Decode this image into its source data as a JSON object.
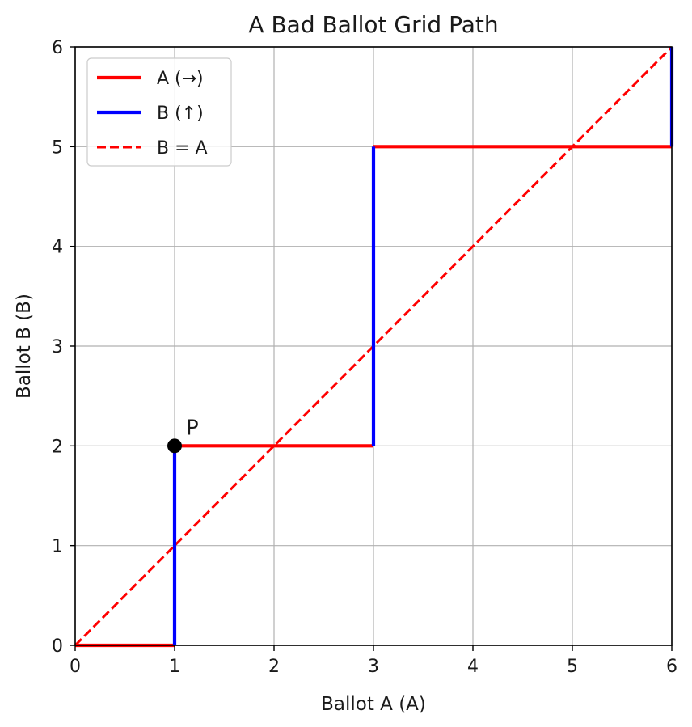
{
  "chart_data": {
    "type": "line",
    "title": "A Bad Ballot Grid Path",
    "xlabel": "Ballot A (A)",
    "ylabel": "Ballot B (B)",
    "xlim": [
      0,
      6
    ],
    "ylim": [
      0,
      6
    ],
    "xticks": [
      "0",
      "1",
      "2",
      "3",
      "4",
      "5",
      "6"
    ],
    "yticks": [
      "0",
      "1",
      "2",
      "3",
      "4",
      "5",
      "6"
    ],
    "grid": true,
    "legend_position": "top-left",
    "series": [
      {
        "name": "A (→)",
        "color": "#ff0000",
        "style": "solid",
        "segments": [
          [
            [
              0,
              0
            ],
            [
              1,
              0
            ]
          ],
          [
            [
              1,
              2
            ],
            [
              3,
              2
            ]
          ],
          [
            [
              3,
              5
            ],
            [
              6,
              5
            ]
          ]
        ]
      },
      {
        "name": "B (↑)",
        "color": "#0000ff",
        "style": "solid",
        "segments": [
          [
            [
              1,
              0
            ],
            [
              1,
              2
            ]
          ],
          [
            [
              3,
              2
            ],
            [
              3,
              5
            ]
          ],
          [
            [
              6,
              5
            ],
            [
              6,
              6
            ]
          ]
        ]
      },
      {
        "name": "B = A",
        "color": "#ff0000",
        "style": "dashed",
        "segments": [
          [
            [
              0,
              0
            ],
            [
              6,
              6
            ]
          ]
        ]
      }
    ],
    "annotations": [
      {
        "label": "P",
        "x": 1,
        "y": 2,
        "marker_color": "#000000"
      }
    ]
  }
}
